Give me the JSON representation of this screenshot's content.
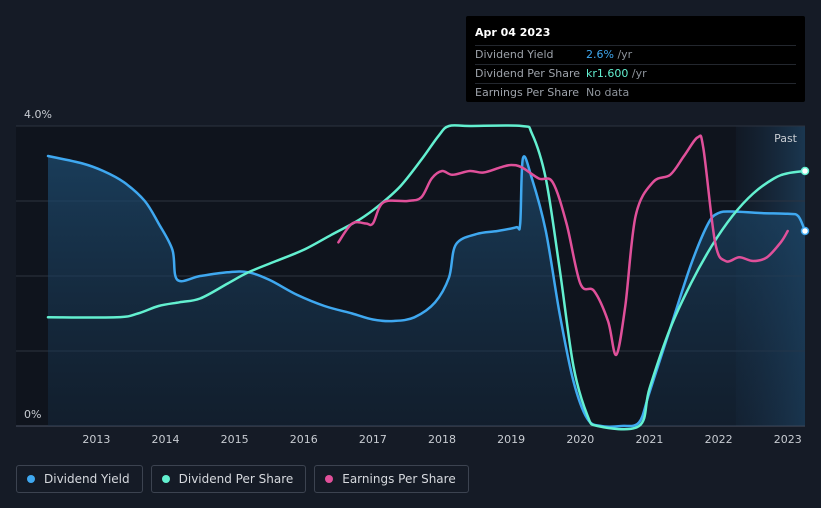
{
  "tooltip": {
    "date": "Apr 04 2023",
    "rows": [
      {
        "label": "Dividend Yield",
        "value": "2.6%",
        "unit": " /yr",
        "color": "#3fa8f0"
      },
      {
        "label": "Dividend Per Share",
        "value": "kr1.600",
        "unit": " /yr",
        "color": "#63f0d0"
      },
      {
        "label": "Earnings Per Share",
        "value": "No data",
        "unit": "",
        "color": "#8e949c"
      }
    ]
  },
  "legend": [
    {
      "label": "Dividend Yield",
      "color": "#3fa8f0"
    },
    {
      "label": "Dividend Per Share",
      "color": "#63f0d0"
    },
    {
      "label": "Earnings Per Share",
      "color": "#e0509a"
    }
  ],
  "chart_data": {
    "type": "line",
    "title": "",
    "xlabel": "",
    "ylabel": "",
    "y_tick_labels": [
      "4.0%",
      "0%"
    ],
    "x_ticks": [
      "2013",
      "2014",
      "2015",
      "2016",
      "2017",
      "2018",
      "2019",
      "2020",
      "2021",
      "2022",
      "2023"
    ],
    "xlim": [
      2012.3,
      2023.25
    ],
    "ylim": [
      0,
      4.0
    ],
    "past_label": "Past",
    "past_region_start": 2022.25,
    "series": [
      {
        "name": "Dividend Yield",
        "unit": "%",
        "color": "#3fa8f0",
        "filled": true,
        "points": [
          [
            2012.3,
            3.6
          ],
          [
            2012.8,
            3.5
          ],
          [
            2013.1,
            3.4
          ],
          [
            2013.4,
            3.25
          ],
          [
            2013.7,
            3.0
          ],
          [
            2013.9,
            2.7
          ],
          [
            2014.1,
            2.35
          ],
          [
            2014.17,
            1.95
          ],
          [
            2014.5,
            2.0
          ],
          [
            2014.9,
            2.05
          ],
          [
            2015.2,
            2.05
          ],
          [
            2015.5,
            1.95
          ],
          [
            2015.9,
            1.75
          ],
          [
            2016.3,
            1.6
          ],
          [
            2016.7,
            1.5
          ],
          [
            2017.0,
            1.42
          ],
          [
            2017.3,
            1.4
          ],
          [
            2017.6,
            1.45
          ],
          [
            2017.9,
            1.65
          ],
          [
            2018.1,
            1.98
          ],
          [
            2018.2,
            2.42
          ],
          [
            2018.5,
            2.56
          ],
          [
            2018.8,
            2.6
          ],
          [
            2019.07,
            2.65
          ],
          [
            2019.13,
            2.7
          ],
          [
            2019.17,
            3.57
          ],
          [
            2019.3,
            3.3
          ],
          [
            2019.5,
            2.6
          ],
          [
            2019.7,
            1.5
          ],
          [
            2019.9,
            0.6
          ],
          [
            2020.1,
            0.1
          ],
          [
            2020.3,
            0.0
          ],
          [
            2020.6,
            0.0
          ],
          [
            2020.85,
            0.05
          ],
          [
            2021.0,
            0.45
          ],
          [
            2021.3,
            1.3
          ],
          [
            2021.6,
            2.15
          ],
          [
            2021.85,
            2.7
          ],
          [
            2022.0,
            2.84
          ],
          [
            2022.2,
            2.86
          ],
          [
            2022.6,
            2.84
          ],
          [
            2023.0,
            2.83
          ],
          [
            2023.15,
            2.8
          ],
          [
            2023.25,
            2.6
          ]
        ]
      },
      {
        "name": "Dividend Per Share",
        "unit": "kr",
        "color": "#63f0d0",
        "points": [
          [
            2012.3,
            1.45
          ],
          [
            2013.3,
            1.45
          ],
          [
            2013.6,
            1.5
          ],
          [
            2013.9,
            1.6
          ],
          [
            2014.2,
            1.65
          ],
          [
            2014.5,
            1.7
          ],
          [
            2014.9,
            1.9
          ],
          [
            2015.2,
            2.05
          ],
          [
            2015.6,
            2.2
          ],
          [
            2016.0,
            2.35
          ],
          [
            2016.4,
            2.55
          ],
          [
            2016.8,
            2.75
          ],
          [
            2017.1,
            2.95
          ],
          [
            2017.4,
            3.2
          ],
          [
            2017.7,
            3.55
          ],
          [
            2017.95,
            3.87
          ],
          [
            2018.1,
            4.0
          ],
          [
            2018.4,
            4.0
          ],
          [
            2019.15,
            4.0
          ],
          [
            2019.3,
            3.9
          ],
          [
            2019.5,
            3.3
          ],
          [
            2019.7,
            2.1
          ],
          [
            2019.9,
            0.8
          ],
          [
            2020.1,
            0.15
          ],
          [
            2020.25,
            0.0
          ],
          [
            2020.85,
            0.0
          ],
          [
            2021.0,
            0.5
          ],
          [
            2021.3,
            1.3
          ],
          [
            2021.6,
            1.9
          ],
          [
            2021.9,
            2.4
          ],
          [
            2022.2,
            2.8
          ],
          [
            2022.5,
            3.1
          ],
          [
            2022.8,
            3.3
          ],
          [
            2023.0,
            3.37
          ],
          [
            2023.25,
            3.4
          ]
        ]
      },
      {
        "name": "Earnings Per Share",
        "unit": "kr",
        "color": "#e0509a",
        "points": [
          [
            2016.5,
            2.45
          ],
          [
            2016.7,
            2.7
          ],
          [
            2016.9,
            2.7
          ],
          [
            2017.0,
            2.7
          ],
          [
            2017.15,
            2.98
          ],
          [
            2017.5,
            3.0
          ],
          [
            2017.7,
            3.05
          ],
          [
            2017.85,
            3.3
          ],
          [
            2018.0,
            3.4
          ],
          [
            2018.15,
            3.35
          ],
          [
            2018.4,
            3.4
          ],
          [
            2018.6,
            3.38
          ],
          [
            2018.85,
            3.45
          ],
          [
            2019.0,
            3.48
          ],
          [
            2019.15,
            3.45
          ],
          [
            2019.4,
            3.3
          ],
          [
            2019.6,
            3.25
          ],
          [
            2019.8,
            2.7
          ],
          [
            2020.0,
            1.9
          ],
          [
            2020.2,
            1.8
          ],
          [
            2020.4,
            1.4
          ],
          [
            2020.52,
            0.95
          ],
          [
            2020.65,
            1.6
          ],
          [
            2020.8,
            2.8
          ],
          [
            2021.05,
            3.25
          ],
          [
            2021.3,
            3.35
          ],
          [
            2021.5,
            3.6
          ],
          [
            2021.7,
            3.85
          ],
          [
            2021.78,
            3.7
          ],
          [
            2021.95,
            2.45
          ],
          [
            2022.1,
            2.2
          ],
          [
            2022.3,
            2.25
          ],
          [
            2022.5,
            2.2
          ],
          [
            2022.7,
            2.25
          ],
          [
            2022.9,
            2.45
          ],
          [
            2023.0,
            2.6
          ]
        ]
      }
    ]
  }
}
